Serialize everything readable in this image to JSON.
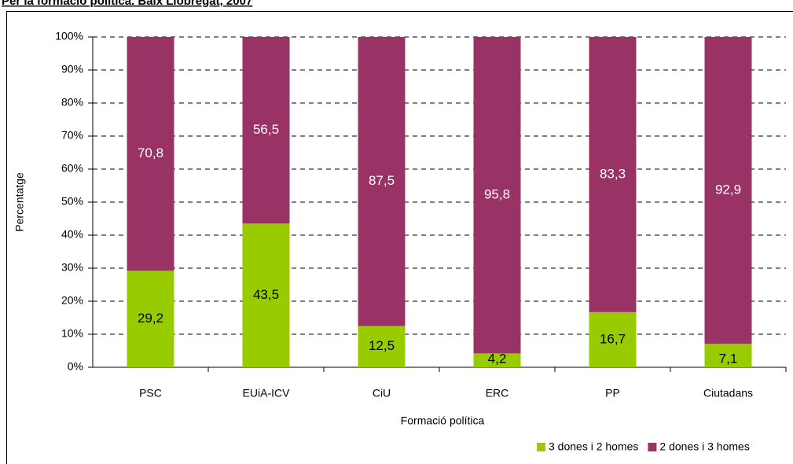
{
  "chart_data": {
    "type": "stacked_bar",
    "title": "Per la formació política. Baix Llobregat, 2007",
    "x_label": "Formació política",
    "y_label": "Percentatge",
    "categories": [
      "PSC",
      "EUiA-ICV",
      "CiU",
      "ERC",
      "PP",
      "Ciutadans"
    ],
    "series": [
      {
        "name": "3 dones i 2 homes",
        "color": "#99cc00",
        "values": [
          29.2,
          43.5,
          12.5,
          4.2,
          16.7,
          7.1
        ],
        "value_labels": [
          "29,2",
          "43,5",
          "12,5",
          "4,2",
          "16,7",
          "7,1"
        ]
      },
      {
        "name": "2 dones i 3 homes",
        "color": "#993366",
        "values": [
          70.8,
          56.5,
          87.5,
          95.8,
          83.3,
          92.9
        ],
        "value_labels": [
          "70,8",
          "56,5",
          "87,5",
          "95,8",
          "83,3",
          "92,9"
        ]
      }
    ],
    "ylim": [
      0,
      100
    ],
    "yticks": [
      {
        "value": 0,
        "label": "0%"
      },
      {
        "value": 10,
        "label": "10%"
      },
      {
        "value": 20,
        "label": "20%"
      },
      {
        "value": 30,
        "label": "30%"
      },
      {
        "value": 40,
        "label": "40%"
      },
      {
        "value": 50,
        "label": "50%"
      },
      {
        "value": 60,
        "label": "60%"
      },
      {
        "value": 70,
        "label": "70%"
      },
      {
        "value": 80,
        "label": "80%"
      },
      {
        "value": 90,
        "label": "90%"
      },
      {
        "value": 100,
        "label": "100%"
      }
    ],
    "grid": true,
    "legend": "bottom-right"
  }
}
